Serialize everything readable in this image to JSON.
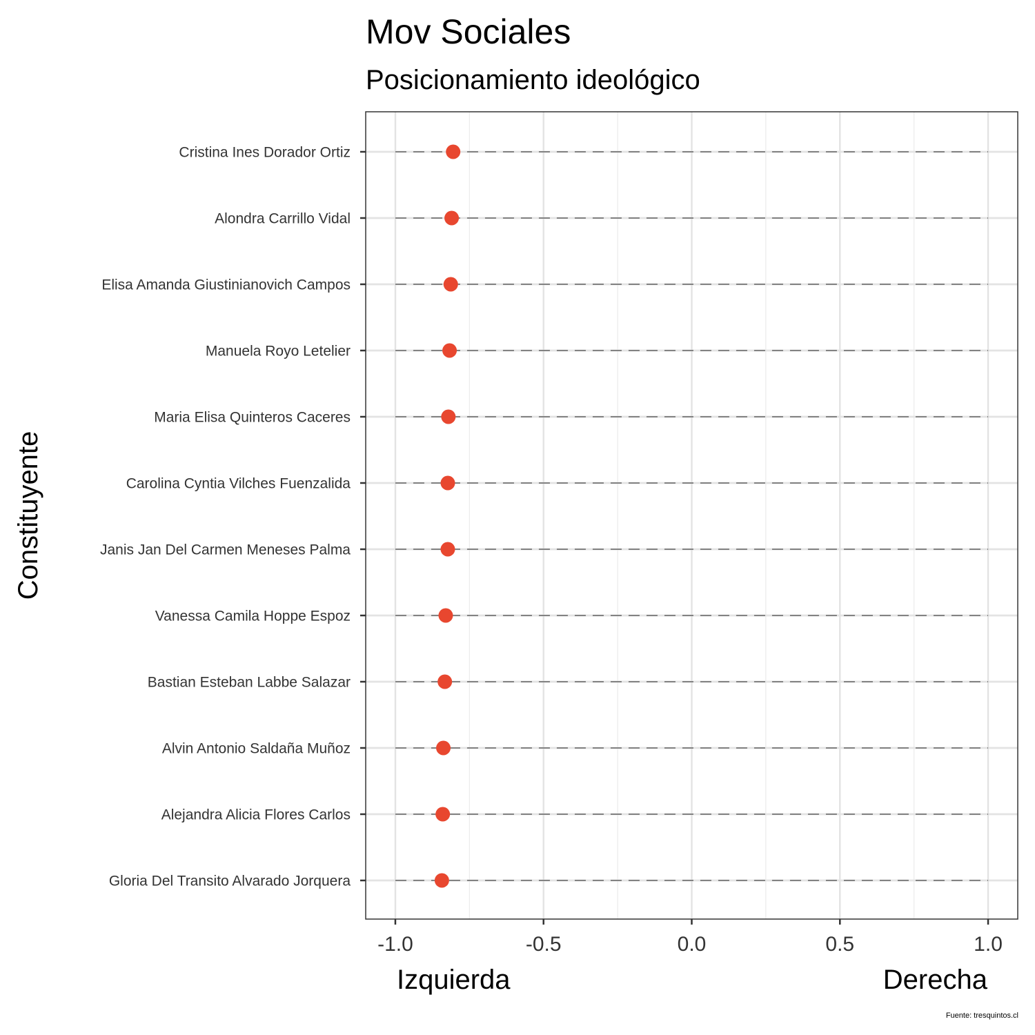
{
  "chart_data": {
    "type": "scatter",
    "title": "Mov Sociales",
    "subtitle": "Posicionamiento ideológico",
    "ylabel": "Constituyente",
    "x_end_labels": {
      "left": "Izquierda",
      "right": "Derecha"
    },
    "caption": "Fuente: tresquintos.cl",
    "xlim": [
      -1.1,
      1.1
    ],
    "x_ticks": [
      -1.0,
      -0.5,
      0.0,
      0.5,
      1.0
    ],
    "x_tick_labels": [
      "-1.0",
      "-0.5",
      "0.0",
      "0.5",
      "1.0"
    ],
    "reference_range": [
      -1.0,
      1.0
    ],
    "grid": true,
    "point_color": "#E8472F",
    "categories": [
      "Cristina Ines Dorador Ortiz",
      "Alondra Carrillo Vidal",
      "Elisa Amanda Giustinianovich Campos",
      "Manuela Royo Letelier",
      "Maria Elisa Quinteros Caceres",
      "Carolina Cyntia Vilches Fuenzalida",
      "Janis Jan Del Carmen Meneses Palma",
      "Vanessa Camila Hoppe Espoz",
      "Bastian Esteban Labbe Salazar",
      "Alvin Antonio Saldaña Muñoz",
      "Alejandra Alicia Flores Carlos",
      "Gloria Del Transito Alvarado Jorquera"
    ],
    "values": [
      -0.805,
      -0.81,
      -0.813,
      -0.817,
      -0.821,
      -0.823,
      -0.823,
      -0.83,
      -0.833,
      -0.838,
      -0.84,
      -0.843
    ]
  }
}
